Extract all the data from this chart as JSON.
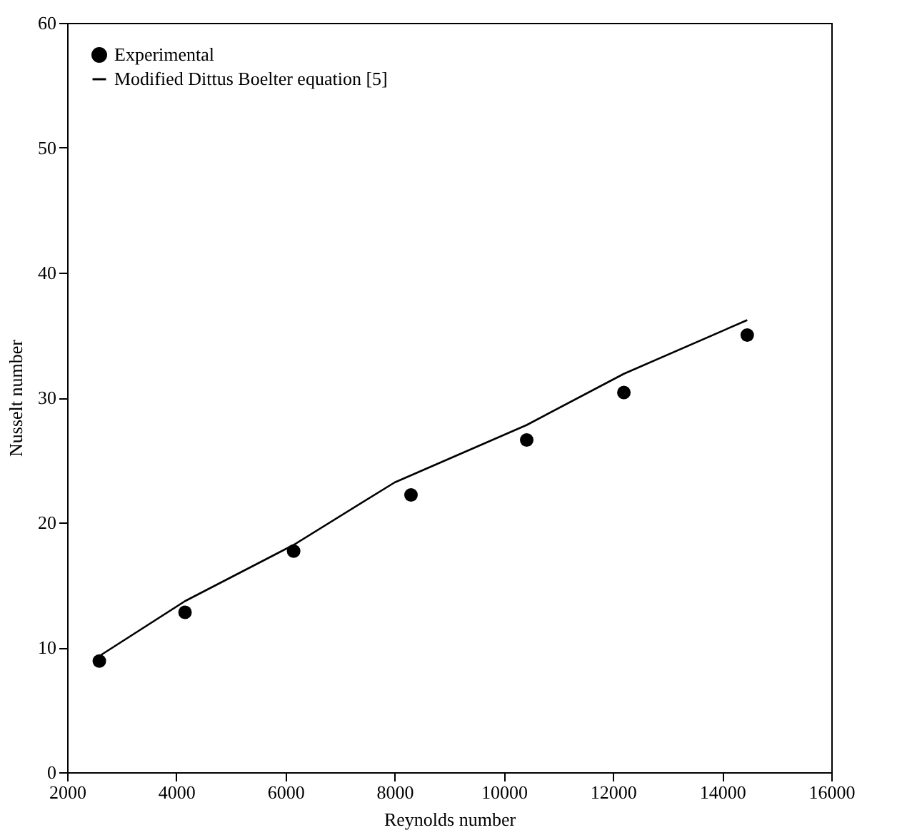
{
  "chart_data": {
    "type": "scatter",
    "xlabel": "Reynolds number",
    "ylabel": "Nusselt number",
    "series": [
      {
        "name": "Experimental",
        "color": "#000000",
        "marker": "circle",
        "x": [
          2590,
          4160,
          6150,
          8300,
          10420,
          12200,
          14460
        ],
        "values": [
          8.9,
          12.8,
          17.7,
          22.2,
          26.6,
          30.4,
          35.0
        ]
      },
      {
        "name": "Modified Dittus Boelter equation [5]",
        "type": "line",
        "color": "#000000",
        "marker": "none",
        "line_style": "solid",
        "x": [
          2590,
          4160,
          6150,
          8000,
          10420,
          12200,
          14460
        ],
        "values": [
          9.3,
          13.7,
          18.2,
          23.2,
          27.8,
          31.9,
          36.2
        ]
      }
    ],
    "xlim": [
      2000,
      16000
    ],
    "xticks": [
      2000,
      4000,
      6000,
      8000,
      10000,
      12000,
      14000,
      16000
    ],
    "ylim": [
      0,
      60
    ],
    "yticks": [
      0,
      10,
      20,
      30,
      40,
      50,
      60
    ],
    "grid": false,
    "legend": "top left"
  }
}
